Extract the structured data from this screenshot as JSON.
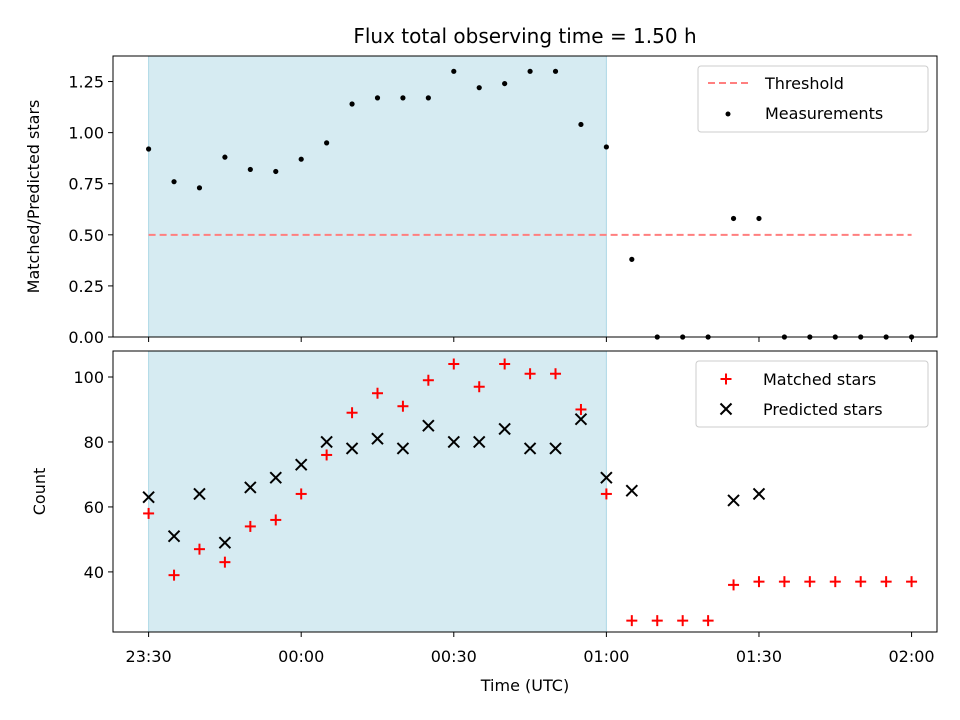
{
  "title": "Flux total observing time = 1.50 h",
  "xlabel": "Time (UTC)",
  "colors": {
    "shade": "#add8e6",
    "threshold": "#ff7f7f",
    "measurements": "#000000",
    "matched": "#ff0000",
    "predicted": "#000000"
  },
  "chart_data": [
    {
      "type": "scatter",
      "ylabel": "Matched/Predicted stars",
      "ylim": [
        0,
        1.375
      ],
      "yticks": [
        0.0,
        0.25,
        0.5,
        0.75,
        1.0,
        1.25
      ],
      "ytick_labels": [
        "0.00",
        "0.25",
        "0.50",
        "0.75",
        "1.00",
        "1.25"
      ],
      "xlim": [
        "23:23",
        "02:05"
      ],
      "xticks": [
        "23:30",
        "00:00",
        "00:30",
        "01:00",
        "01:30",
        "02:00"
      ],
      "xtick_labels": [],
      "shaded_span": [
        "23:30",
        "01:00"
      ],
      "legend_position": "top-right",
      "threshold": {
        "name": "Threshold",
        "value": 0.5,
        "x": [
          "23:30",
          "02:00"
        ],
        "style": "dashed"
      },
      "series": [
        {
          "name": "Measurements",
          "marker": "dot",
          "x": [
            "23:30",
            "23:35",
            "23:40",
            "23:45",
            "23:50",
            "23:55",
            "00:00",
            "00:05",
            "00:10",
            "00:15",
            "00:20",
            "00:25",
            "00:30",
            "00:35",
            "00:40",
            "00:45",
            "00:50",
            "00:55",
            "01:00",
            "01:05",
            "01:10",
            "01:15",
            "01:20",
            "01:25",
            "01:30",
            "01:35",
            "01:40",
            "01:45",
            "01:50",
            "01:55",
            "02:00"
          ],
          "values": [
            0.92,
            0.76,
            0.73,
            0.88,
            0.82,
            0.81,
            0.87,
            0.95,
            1.14,
            1.17,
            1.17,
            1.17,
            1.3,
            1.22,
            1.24,
            1.3,
            1.3,
            1.04,
            0.93,
            0.38,
            0.0,
            0.0,
            0.0,
            0.58,
            0.58,
            0.0,
            0.0,
            0.0,
            0.0,
            0.0,
            0.0
          ]
        }
      ]
    },
    {
      "type": "scatter",
      "ylabel": "Count",
      "ylim": [
        21.5,
        108
      ],
      "yticks": [
        40,
        60,
        80,
        100
      ],
      "ytick_labels": [
        "40",
        "60",
        "80",
        "100"
      ],
      "xlim": [
        "23:23",
        "02:05"
      ],
      "xticks": [
        "23:30",
        "00:00",
        "00:30",
        "01:00",
        "01:30",
        "02:00"
      ],
      "xtick_labels": [
        "23:30",
        "00:00",
        "00:30",
        "01:00",
        "01:30",
        "02:00"
      ],
      "shaded_span": [
        "23:30",
        "01:00"
      ],
      "legend_position": "top-right",
      "series": [
        {
          "name": "Matched stars",
          "marker": "plus",
          "x": [
            "23:30",
            "23:35",
            "23:40",
            "23:45",
            "23:50",
            "23:55",
            "00:00",
            "00:05",
            "00:10",
            "00:15",
            "00:20",
            "00:25",
            "00:30",
            "00:35",
            "00:40",
            "00:45",
            "00:50",
            "00:55",
            "01:00",
            "01:05",
            "01:10",
            "01:15",
            "01:20",
            "01:25",
            "01:30",
            "01:35",
            "01:40",
            "01:45",
            "01:50",
            "01:55",
            "02:00"
          ],
          "values": [
            58,
            39,
            47,
            43,
            54,
            56,
            64,
            76,
            89,
            95,
            91,
            99,
            104,
            97,
            104,
            101,
            101,
            90,
            64,
            25,
            25,
            25,
            25,
            36,
            37,
            37,
            37,
            37,
            37,
            37,
            37
          ]
        },
        {
          "name": "Predicted stars",
          "marker": "x",
          "x": [
            "23:30",
            "23:35",
            "23:40",
            "23:45",
            "23:50",
            "23:55",
            "00:00",
            "00:05",
            "00:10",
            "00:15",
            "00:20",
            "00:25",
            "00:30",
            "00:35",
            "00:40",
            "00:45",
            "00:50",
            "00:55",
            "01:00",
            "01:05",
            "01:25",
            "01:30"
          ],
          "values": [
            63,
            51,
            64,
            49,
            66,
            69,
            73,
            80,
            78,
            81,
            78,
            85,
            80,
            80,
            84,
            78,
            78,
            87,
            69,
            65,
            62,
            64
          ]
        }
      ]
    }
  ]
}
